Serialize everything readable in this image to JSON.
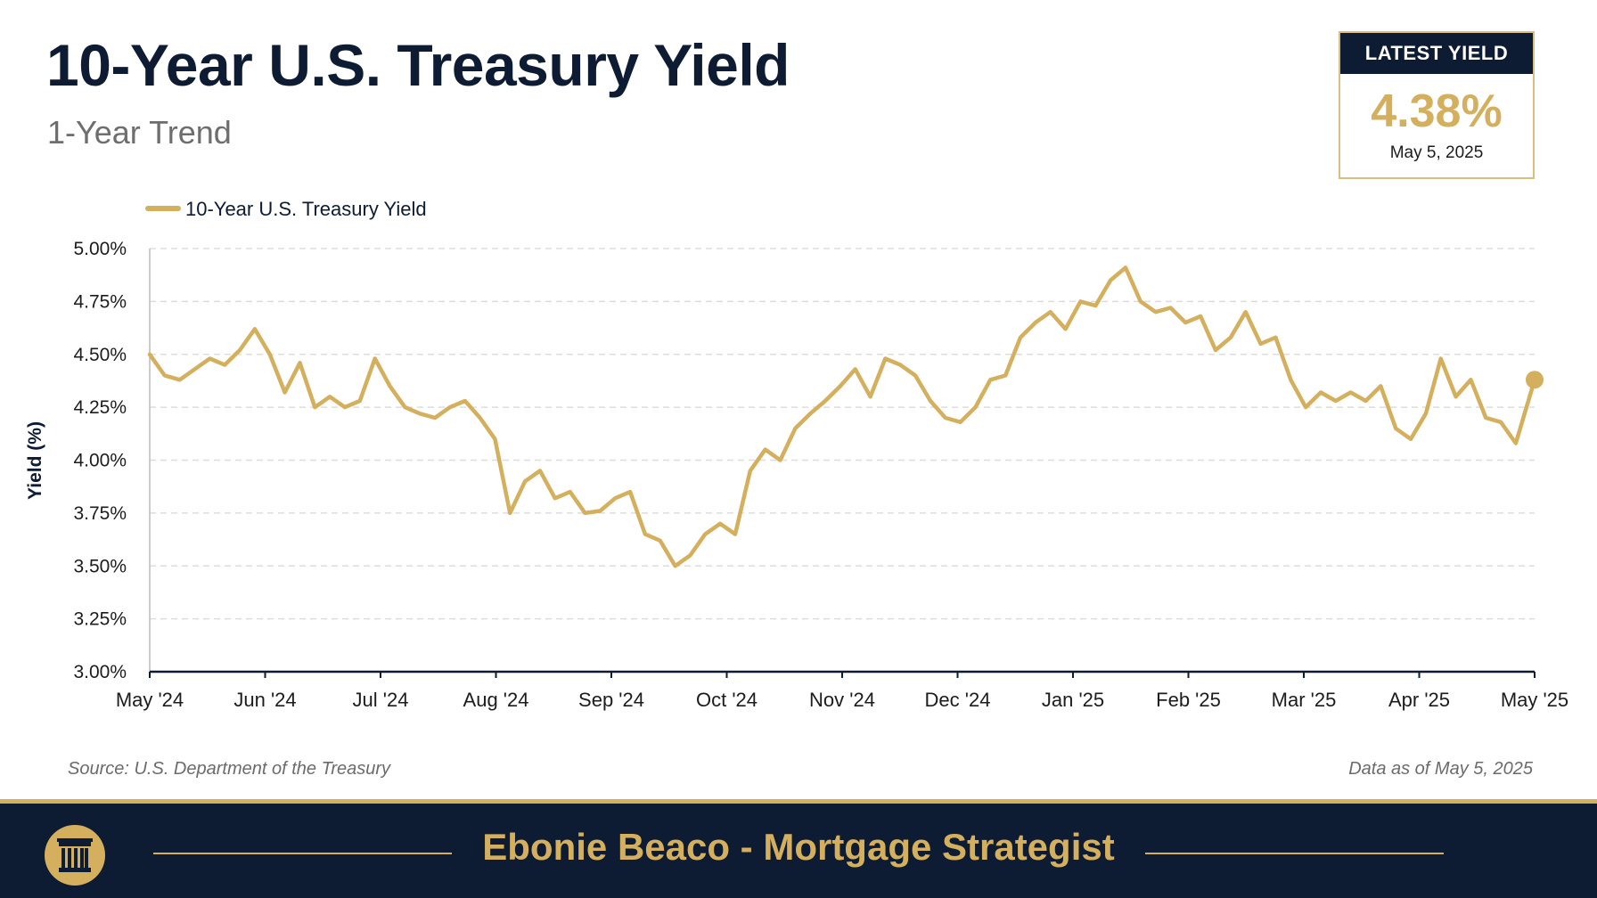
{
  "header": {
    "title": "10-Year U.S. Treasury Yield",
    "subtitle": "1-Year Trend"
  },
  "badge": {
    "label": "LATEST YIELD",
    "value": "4.38%",
    "date": "May 5, 2025"
  },
  "footer": {
    "source": "Source: U.S. Department of the Treasury",
    "as_of": "Data as of May 5, 2025",
    "brand": "Ebonie Beaco - Mortgage Strategist"
  },
  "colors": {
    "line": "#d4af5e",
    "navy": "#0d1b33",
    "grid": "#dddddd"
  },
  "icons": {
    "logo": "pillar-icon"
  },
  "chart_data": {
    "type": "line",
    "ylabel": "Yield (%)",
    "xlabel": "",
    "ylim": [
      3.0,
      5.0
    ],
    "yticks": [
      "3.00%",
      "3.25%",
      "3.50%",
      "3.75%",
      "4.00%",
      "4.25%",
      "4.50%",
      "4.75%",
      "5.00%"
    ],
    "x_tick_labels": [
      "May '24",
      "Jun '24",
      "Jul '24",
      "Aug '24",
      "Sep '24",
      "Oct '24",
      "Nov '24",
      "Dec '24",
      "Jan '25",
      "Feb '25",
      "Mar '25",
      "Apr '25",
      "May '25"
    ],
    "grid": true,
    "legend_position": "top-left",
    "series": [
      {
        "name": "10-Year U.S. Treasury Yield",
        "x": [
          "2024-05-01",
          "2024-05-05",
          "2024-05-09",
          "2024-05-13",
          "2024-05-17",
          "2024-05-21",
          "2024-05-25",
          "2024-05-29",
          "2024-06-02",
          "2024-06-06",
          "2024-06-10",
          "2024-06-14",
          "2024-06-18",
          "2024-06-22",
          "2024-06-26",
          "2024-06-30",
          "2024-07-04",
          "2024-07-08",
          "2024-07-12",
          "2024-07-16",
          "2024-07-20",
          "2024-07-24",
          "2024-07-28",
          "2024-08-01",
          "2024-08-05",
          "2024-08-09",
          "2024-08-13",
          "2024-08-17",
          "2024-08-21",
          "2024-08-25",
          "2024-08-29",
          "2024-09-02",
          "2024-09-06",
          "2024-09-10",
          "2024-09-14",
          "2024-09-18",
          "2024-09-22",
          "2024-09-26",
          "2024-09-30",
          "2024-10-04",
          "2024-10-08",
          "2024-10-12",
          "2024-10-16",
          "2024-10-20",
          "2024-10-24",
          "2024-10-28",
          "2024-11-01",
          "2024-11-05",
          "2024-11-09",
          "2024-11-13",
          "2024-11-17",
          "2024-11-21",
          "2024-11-25",
          "2024-11-29",
          "2024-12-03",
          "2024-12-07",
          "2024-12-11",
          "2024-12-15",
          "2024-12-19",
          "2024-12-23",
          "2024-12-27",
          "2024-12-31",
          "2025-01-04",
          "2025-01-08",
          "2025-01-12",
          "2025-01-16",
          "2025-01-20",
          "2025-01-24",
          "2025-01-28",
          "2025-02-01",
          "2025-02-05",
          "2025-02-09",
          "2025-02-13",
          "2025-02-17",
          "2025-02-21",
          "2025-02-25",
          "2025-03-01",
          "2025-03-05",
          "2025-03-09",
          "2025-03-13",
          "2025-03-17",
          "2025-03-21",
          "2025-03-25",
          "2025-03-29",
          "2025-04-02",
          "2025-04-06",
          "2025-04-10",
          "2025-04-14",
          "2025-04-18",
          "2025-04-22",
          "2025-04-26",
          "2025-04-30",
          "2025-05-05"
        ],
        "values": [
          4.5,
          4.4,
          4.38,
          4.43,
          4.48,
          4.45,
          4.52,
          4.62,
          4.5,
          4.32,
          4.46,
          4.25,
          4.3,
          4.25,
          4.28,
          4.48,
          4.35,
          4.25,
          4.22,
          4.2,
          4.25,
          4.28,
          4.2,
          4.1,
          3.75,
          3.9,
          3.95,
          3.82,
          3.85,
          3.75,
          3.76,
          3.82,
          3.85,
          3.65,
          3.62,
          3.5,
          3.55,
          3.65,
          3.7,
          3.65,
          3.95,
          4.05,
          4.0,
          4.15,
          4.22,
          4.28,
          4.35,
          4.43,
          4.3,
          4.48,
          4.45,
          4.4,
          4.28,
          4.2,
          4.18,
          4.25,
          4.38,
          4.4,
          4.58,
          4.65,
          4.7,
          4.62,
          4.75,
          4.73,
          4.85,
          4.91,
          4.75,
          4.7,
          4.72,
          4.65,
          4.68,
          4.52,
          4.58,
          4.7,
          4.55,
          4.58,
          4.38,
          4.25,
          4.32,
          4.28,
          4.32,
          4.28,
          4.35,
          4.15,
          4.1,
          4.22,
          4.48,
          4.3,
          4.38,
          4.2,
          4.18,
          4.08,
          4.38
        ]
      }
    ],
    "latest": {
      "x": "2025-05-05",
      "y": 4.38
    }
  }
}
